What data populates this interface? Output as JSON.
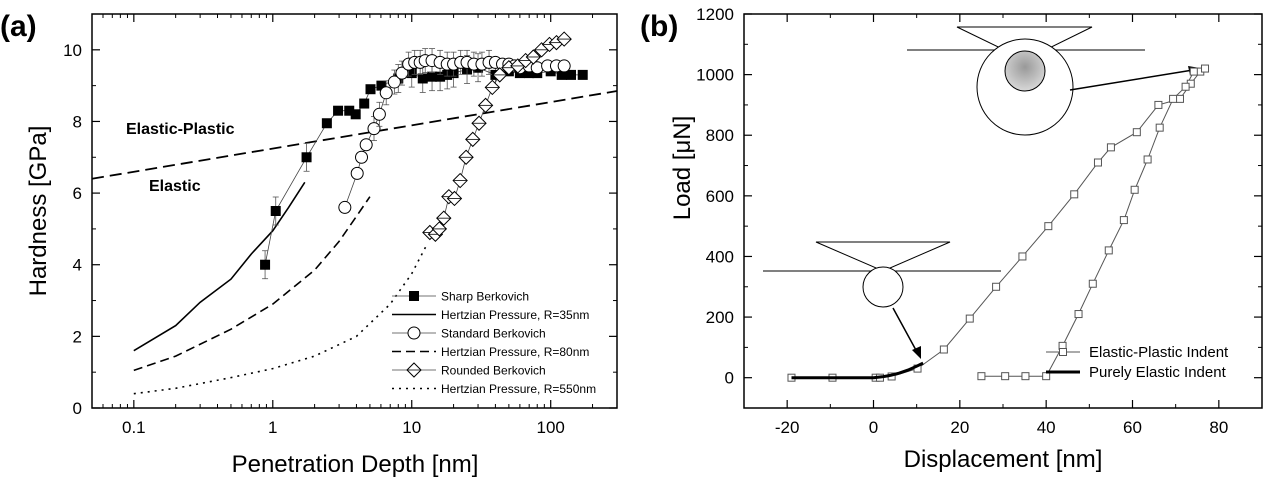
{
  "panels": {
    "a": {
      "label": "(a)"
    },
    "b": {
      "label": "(b)"
    }
  },
  "chart_data": [
    {
      "type": "scatter",
      "panel": "(a)",
      "xlabel": "Penetration Depth [nm]",
      "ylabel": "Hardness [GPa]",
      "xscale": "log",
      "xlim": [
        0.05,
        300
      ],
      "ylim": [
        0,
        11
      ],
      "xticks": [
        0.1,
        1,
        10,
        100
      ],
      "xtick_labels": [
        "0.1",
        "1",
        "10",
        "100"
      ],
      "yticks": [
        0,
        2,
        4,
        6,
        8,
        10
      ],
      "grid": false,
      "legend_position": "bottom-right",
      "annotations": [
        "Elastic-Plastic",
        "Elastic"
      ],
      "boundary_line": {
        "x": [
          0.05,
          300
        ],
        "y": [
          6.4,
          8.85
        ]
      },
      "series": [
        {
          "name": "Sharp Berkovich",
          "marker": "square-filled",
          "color": "#000000",
          "x": [
            0.88,
            1.05,
            1.75,
            2.45,
            2.95,
            3.55,
            3.95,
            4.55,
            5.05,
            6.05,
            8.0,
            10.0,
            12.0,
            14.0,
            16.0,
            18.0,
            20.0,
            25.0,
            30.0,
            40.0,
            50.0,
            60.0,
            70.0,
            80.0,
            100.0,
            120.0,
            140.0,
            170.0
          ],
          "y": [
            4.0,
            5.5,
            7.0,
            7.95,
            8.3,
            8.3,
            8.2,
            8.5,
            8.9,
            9.0,
            9.2,
            9.35,
            9.2,
            9.25,
            9.25,
            9.3,
            9.35,
            9.45,
            9.5,
            9.3,
            9.4,
            9.35,
            9.35,
            9.35,
            9.4,
            9.3,
            9.3,
            9.3
          ]
        },
        {
          "name": "Standard Berkovich",
          "marker": "circle-open",
          "color": "#000000",
          "x": [
            3.3,
            4.05,
            4.35,
            4.7,
            5.35,
            5.85,
            6.55,
            7.5,
            8.5,
            9.5,
            10.5,
            11.5,
            12.5,
            14.0,
            16.0,
            18.0,
            20.0,
            22.5,
            25.0,
            28.0,
            32.0,
            36.0,
            40.0,
            45.0,
            50.0,
            55.0,
            60.0,
            70.0,
            80.0,
            95.0,
            110.0,
            125.0
          ],
          "y": [
            5.6,
            6.55,
            7.0,
            7.35,
            7.8,
            8.2,
            8.8,
            9.1,
            9.35,
            9.6,
            9.65,
            9.65,
            9.7,
            9.7,
            9.65,
            9.6,
            9.6,
            9.65,
            9.65,
            9.6,
            9.6,
            9.65,
            9.65,
            9.6,
            9.6,
            9.55,
            9.5,
            9.55,
            9.5,
            9.55,
            9.55,
            9.55
          ]
        },
        {
          "name": "Rounded Berkovich",
          "marker": "diamond-open",
          "color": "#000000",
          "x": [
            13.5,
            14.8,
            15.8,
            17.0,
            18.5,
            20.3,
            22.3,
            24.6,
            27.5,
            30.5,
            34.0,
            38.0,
            43.0,
            50.0,
            58.0,
            66.0,
            75.0,
            86.0,
            98.0,
            110.0,
            125.0
          ],
          "y": [
            4.9,
            4.85,
            5.0,
            5.3,
            5.9,
            5.85,
            6.35,
            7.0,
            7.5,
            7.95,
            8.45,
            8.95,
            9.3,
            9.5,
            9.55,
            9.7,
            9.8,
            10.0,
            10.15,
            10.2,
            10.3
          ]
        },
        {
          "name": "Hertzian Pressure, R=35nm",
          "style": "solid",
          "color": "#000000",
          "x": [
            0.1,
            0.2,
            0.3,
            0.5,
            0.7,
            1.0,
            1.3,
            1.7
          ],
          "y": [
            1.6,
            2.3,
            2.95,
            3.6,
            4.3,
            4.95,
            5.6,
            6.3
          ]
        },
        {
          "name": "Hertzian Pressure, R=80nm",
          "style": "dashed",
          "color": "#000000",
          "x": [
            0.1,
            0.2,
            0.5,
            1.0,
            2.0,
            3.0,
            4.0,
            5.0
          ],
          "y": [
            1.05,
            1.45,
            2.2,
            2.9,
            3.85,
            4.65,
            5.35,
            5.9
          ]
        },
        {
          "name": "Hertzian Pressure, R=550nm",
          "style": "dotted",
          "color": "#000000",
          "x": [
            0.1,
            0.2,
            0.5,
            1.0,
            2.0,
            4.0,
            7.0,
            10.0,
            13.0
          ],
          "y": [
            0.4,
            0.55,
            0.85,
            1.1,
            1.45,
            2.0,
            2.9,
            3.75,
            4.6
          ]
        }
      ]
    },
    {
      "type": "line",
      "panel": "(b)",
      "xlabel": "Displacement [nm]",
      "ylabel": "Load [μN]",
      "xlim": [
        -30,
        90
      ],
      "ylim": [
        -100,
        1200
      ],
      "xticks": [
        -20,
        0,
        20,
        40,
        60,
        80
      ],
      "yticks": [
        0,
        200,
        400,
        600,
        800,
        1000,
        1200
      ],
      "grid": false,
      "legend_position": "bottom-right",
      "series": [
        {
          "name": "Elastic-Plastic Indent",
          "marker": "square-open",
          "style": "thin",
          "color": "#000000",
          "x": [
            -19,
            -9.5,
            0.5,
            1.5,
            4.2,
            10.2,
            16.3,
            22.3,
            28.4,
            34.5,
            40.5,
            46.5,
            52.0,
            55.0,
            61.0,
            66.0,
            71.0,
            73.5,
            75.7,
            76.8,
            74.2,
            72.3,
            69.4,
            66.3,
            63.5,
            60.5,
            58.0,
            54.5,
            50.8,
            47.5,
            43.8,
            40.0,
            35.2,
            30.5,
            25.0
          ],
          "y": [
            0,
            0,
            0,
            0,
            4,
            30,
            93,
            195,
            300,
            400,
            500,
            605,
            710,
            760,
            810,
            900,
            920,
            970,
            1010,
            1020,
            1010,
            960,
            920,
            825,
            720,
            620,
            520,
            420,
            310,
            210,
            105,
            5,
            5,
            5,
            5
          ]
        },
        {
          "name": "Purely Elastic Indent",
          "style": "thick",
          "color": "#000000",
          "x": [
            -19,
            -10,
            -5,
            0,
            2,
            4,
            6,
            8,
            10,
            11.5
          ],
          "y": [
            0,
            0,
            0,
            0,
            3,
            8,
            15,
            25,
            38,
            48
          ]
        }
      ]
    }
  ]
}
